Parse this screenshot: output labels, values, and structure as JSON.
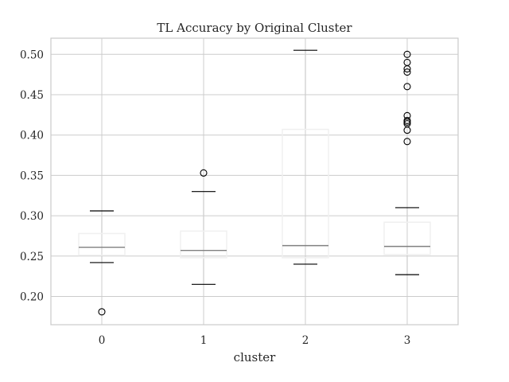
{
  "chart_data": {
    "type": "box",
    "title": "TL Accuracy by Original Cluster",
    "xlabel": "cluster",
    "ylabel": "",
    "categories": [
      "0",
      "1",
      "2",
      "3"
    ],
    "ylim": [
      0.165,
      0.52
    ],
    "yticks": [
      0.2,
      0.25,
      0.3,
      0.35,
      0.4,
      0.45,
      0.5
    ],
    "ytick_labels": [
      "0.20",
      "0.25",
      "0.30",
      "0.35",
      "0.40",
      "0.45",
      "0.50"
    ],
    "grid": true,
    "legend": "none",
    "boxes": [
      {
        "category": "0",
        "whisker_low": 0.242,
        "q1": 0.251,
        "median": 0.261,
        "q3": 0.278,
        "whisker_high": 0.306,
        "outliers": [
          0.181
        ]
      },
      {
        "category": "1",
        "whisker_low": 0.215,
        "q1": 0.248,
        "median": 0.257,
        "q3": 0.281,
        "whisker_high": 0.33,
        "outliers": [
          0.353
        ]
      },
      {
        "category": "2",
        "whisker_low": 0.24,
        "q1": 0.248,
        "median": 0.263,
        "q3": 0.407,
        "whisker_high": 0.505,
        "outliers": []
      },
      {
        "category": "3",
        "whisker_low": 0.227,
        "q1": 0.252,
        "median": 0.262,
        "q3": 0.292,
        "whisker_high": 0.31,
        "outliers": [
          0.392,
          0.406,
          0.414,
          0.416,
          0.418,
          0.424,
          0.46,
          0.478,
          0.482,
          0.49,
          0.5
        ]
      }
    ],
    "colors": {
      "box": "#f0f0f0",
      "whisker": "#cccccc",
      "median": "#808080",
      "cap": "#000000",
      "grid": "#cccccc",
      "spine": "#cccccc",
      "outlier": "#000000"
    }
  }
}
